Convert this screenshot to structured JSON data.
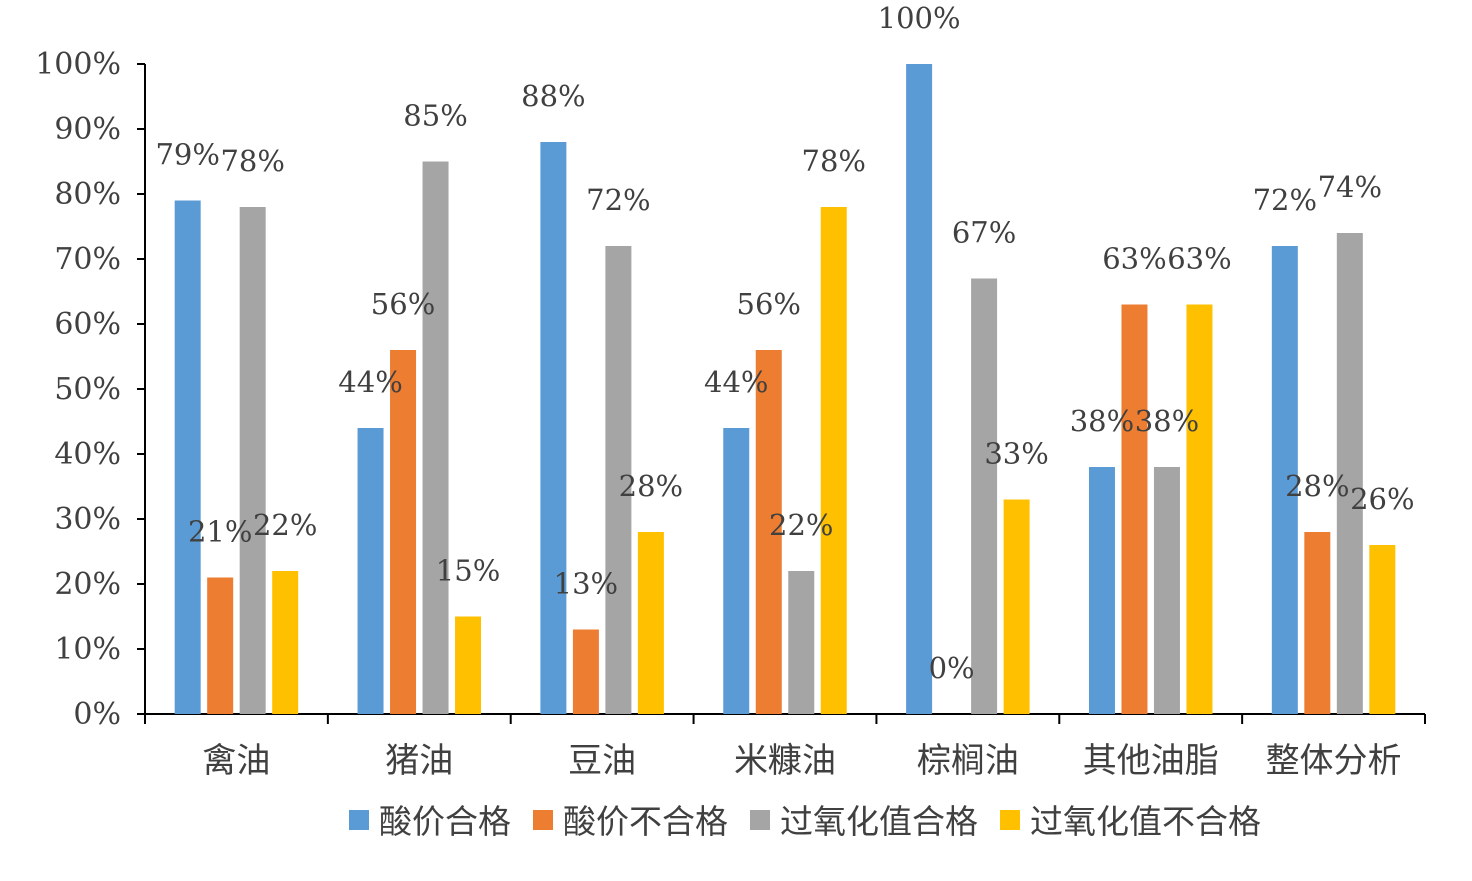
{
  "chart_data": {
    "type": "bar",
    "categories": [
      "禽油",
      "猪油",
      "豆油",
      "米糠油",
      "棕榈油",
      "其他油脂",
      "整体分析"
    ],
    "series": [
      {
        "name": "酸价合格",
        "color": "#5b9bd5",
        "values": [
          79,
          44,
          88,
          44,
          100,
          38,
          72
        ]
      },
      {
        "name": "酸价不合格",
        "color": "#ed7d31",
        "values": [
          21,
          56,
          13,
          56,
          0,
          63,
          28
        ]
      },
      {
        "name": "过氧化值合格",
        "color": "#a5a5a5",
        "values": [
          78,
          85,
          72,
          22,
          67,
          38,
          74
        ]
      },
      {
        "name": "过氧化值不合格",
        "color": "#ffc000",
        "values": [
          22,
          15,
          28,
          78,
          33,
          63,
          26
        ]
      }
    ],
    "data_labels": [
      [
        "79%",
        "44%",
        "88%",
        "44%",
        "100%",
        "38%",
        "72%"
      ],
      [
        "21%",
        "56%",
        "13%",
        "56%",
        "0%",
        "63%",
        "28%"
      ],
      [
        "78%",
        "85%",
        "72%",
        "22%",
        "67%",
        "38%",
        "74%"
      ],
      [
        "22%",
        "15%",
        "28%",
        "78%",
        "33%",
        "63%",
        "26%"
      ]
    ],
    "y_ticks": [
      "0%",
      "10%",
      "20%",
      "30%",
      "40%",
      "50%",
      "60%",
      "70%",
      "80%",
      "90%",
      "100%"
    ],
    "ylim": [
      0,
      100
    ],
    "unit": "%",
    "title": "",
    "xlabel": "",
    "ylabel": "",
    "legend_position": "bottom",
    "grid": false
  }
}
